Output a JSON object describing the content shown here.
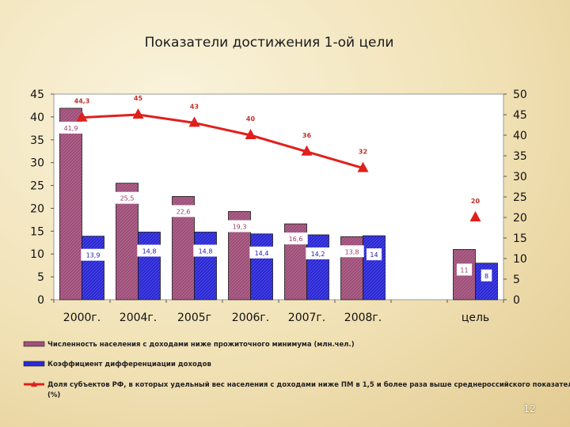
{
  "slide": {
    "title": "Показатели достижения 1-ой цели",
    "page_number": "12"
  },
  "colors": {
    "bar1": "#a0507a",
    "bar2": "#2c2ad6",
    "line": "#e0201c",
    "text_dark": "#222222"
  },
  "chart_data": {
    "type": "bar",
    "categories": [
      "2000г.",
      "2004г.",
      "2005г",
      "2006г.",
      "2007г.",
      "2008г.",
      "",
      "цель"
    ],
    "y_left": {
      "ylim": [
        0,
        45
      ],
      "ticks": [
        "0",
        "5",
        "10",
        "15",
        "20",
        "25",
        "30",
        "35",
        "40",
        "45"
      ]
    },
    "y_right": {
      "ylim": [
        0,
        50
      ],
      "ticks": [
        "0",
        "5",
        "10",
        "15",
        "20",
        "25",
        "30",
        "35",
        "40",
        "45",
        "50"
      ]
    },
    "grid": false,
    "legend_position": "bottom",
    "series": [
      {
        "name": "Численность населения с доходами ниже прожиточного минимума (млн.чел.)",
        "type": "bar",
        "axis": "left",
        "color": "#a0507a",
        "values": [
          41.9,
          25.5,
          22.6,
          19.3,
          16.6,
          13.8,
          null,
          11
        ],
        "labels": [
          "41,9",
          "25,5",
          "22,6",
          "19,3",
          "16,6",
          "13,8",
          "",
          "11"
        ]
      },
      {
        "name": "Коэффициент дифференциации доходов",
        "type": "bar",
        "axis": "left",
        "color": "#2c2ad6",
        "values": [
          13.9,
          14.8,
          14.8,
          14.4,
          14.2,
          14,
          null,
          8
        ],
        "labels": [
          "13,9",
          "14,8",
          "14,8",
          "14,4",
          "14,2",
          "14",
          "",
          "8"
        ]
      },
      {
        "name": "Доля субъектов РФ, в которых удельный вес населения с доходами ниже ПМ в 1,5 и более раза выше среднероссийского показателя (%)",
        "type": "line",
        "axis": "right",
        "color": "#e0201c",
        "values": [
          44.3,
          45,
          43,
          40,
          36,
          32,
          null,
          20
        ],
        "labels": [
          "44,3",
          "45",
          "43",
          "40",
          "36",
          "32",
          "",
          "20"
        ]
      }
    ]
  }
}
